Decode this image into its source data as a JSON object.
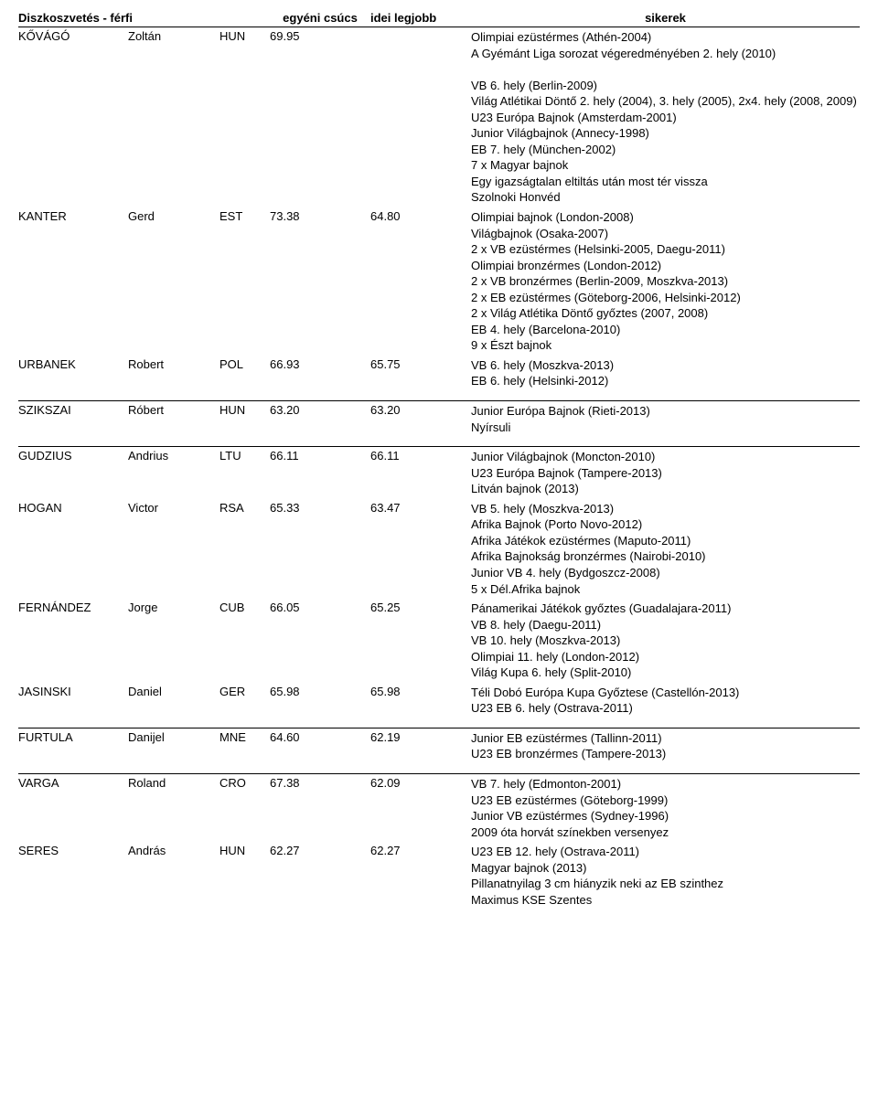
{
  "header": {
    "event": "Diszkoszvetés - férfi",
    "pb": "egyéni csúcs",
    "sb": "idei legjobb",
    "ach": "sikerek"
  },
  "athletes": [
    {
      "surname": "KŐVÁGÓ",
      "first": "Zoltán",
      "nat": "HUN",
      "pb": "69.95",
      "sb": "",
      "ach": [
        "Olimpiai ezüstérmes (Athén-2004)",
        "A Gyémánt Liga sorozat végeredményében 2. hely (2010)",
        "",
        "VB 6. hely (Berlin-2009)",
        "Világ Atlétikai Döntő 2. hely (2004), 3. hely (2005), 2x4. hely (2008, 2009)",
        "U23 Európa Bajnok (Amsterdam-2001)",
        "Junior Világbajnok (Annecy-1998)",
        "EB 7. hely (München-2002)",
        "7 x Magyar bajnok",
        "Egy igazságtalan eltiltás után most tér vissza",
        "Szolnoki Honvéd"
      ],
      "noTopBorder": true
    },
    {
      "surname": "KANTER",
      "first": "Gerd",
      "nat": "EST",
      "pb": "73.38",
      "sb": "64.80",
      "ach": [
        "Olimpiai bajnok (London-2008)",
        "Világbajnok (Osaka-2007)",
        "2 x VB ezüstérmes (Helsinki-2005, Daegu-2011)",
        "Olimpiai bronzérmes (London-2012)",
        "2 x VB bronzérmes (Berlin-2009, Moszkva-2013)",
        "2 x EB ezüstérmes (Göteborg-2006, Helsinki-2012)",
        "2 x Világ Atlétika Döntő győztes (2007, 2008)",
        "EB 4. hely (Barcelona-2010)",
        "9 x Észt bajnok"
      ],
      "noTopBorder": true
    },
    {
      "surname": "URBANEK",
      "first": "Robert",
      "nat": "POL",
      "pb": "66.93",
      "sb": "65.75",
      "ach": [
        "VB 6. hely (Moszkva-2013)",
        "EB 6. hely (Helsinki-2012)"
      ],
      "noTopBorder": true
    },
    {
      "surname": "SZIKSZAI",
      "first": "Róbert",
      "nat": "HUN",
      "pb": "63.20",
      "sb": "63.20",
      "ach": [
        "Junior Európa Bajnok (Rieti-2013)",
        "Nyírsuli"
      ]
    },
    {
      "surname": "GUDZIUS",
      "first": "Andrius",
      "nat": "LTU",
      "pb": "66.11",
      "sb": "66.11",
      "ach": [
        "Junior Világbajnok (Moncton-2010)",
        "U23 Európa Bajnok (Tampere-2013)",
        "Litván bajnok (2013)"
      ]
    },
    {
      "surname": "HOGAN",
      "first": "Victor",
      "nat": "RSA",
      "pb": "65.33",
      "sb": "63.47",
      "ach": [
        "VB 5. hely (Moszkva-2013)",
        "Afrika Bajnok (Porto Novo-2012)",
        "Afrika Játékok ezüstérmes (Maputo-2011)",
        "Afrika Bajnokság bronzérmes (Nairobi-2010)",
        "Junior VB 4. hely (Bydgoszcz-2008)",
        "5 x Dél.Afrika bajnok"
      ],
      "noTopBorder": true
    },
    {
      "surname": "FERNÁNDEZ",
      "first": "Jorge",
      "nat": "CUB",
      "pb": "66.05",
      "sb": "65.25",
      "ach": [
        "Pánamerikai Játékok győztes (Guadalajara-2011)",
        "VB 8. hely (Daegu-2011)",
        "VB 10. hely (Moszkva-2013)",
        "Olimpiai 11. hely (London-2012)",
        "Világ Kupa 6. hely (Split-2010)"
      ],
      "noTopBorder": true
    },
    {
      "surname": "JASINSKI",
      "first": "Daniel",
      "nat": "GER",
      "pb": "65.98",
      "sb": "65.98",
      "ach": [
        "Téli Dobó Európa Kupa Győztese (Castellón-2013)",
        "U23 EB 6. hely (Ostrava-2011)"
      ],
      "noTopBorder": true
    },
    {
      "surname": "FURTULA",
      "first": "Danijel",
      "nat": "MNE",
      "pb": "64.60",
      "sb": "62.19",
      "ach": [
        "Junior EB ezüstérmes (Tallinn-2011)",
        "U23 EB bronzérmes (Tampere-2013)"
      ]
    },
    {
      "surname": "VARGA",
      "first": "Roland",
      "nat": "CRO",
      "pb": "67.38",
      "sb": "62.09",
      "ach": [
        "VB 7. hely (Edmonton-2001)",
        "U23 EB ezüstérmes (Göteborg-1999)",
        "Junior VB ezüstérmes (Sydney-1996)",
        "2009 óta horvát színekben versenyez"
      ]
    },
    {
      "surname": "SERES",
      "first": "András",
      "nat": "HUN",
      "pb": "62.27",
      "sb": "62.27",
      "ach": [
        "U23 EB 12. hely (Ostrava-2011)",
        "Magyar bajnok (2013)",
        "Pillanatnyilag 3 cm hiányzik neki az EB szinthez",
        "Maximus KSE Szentes"
      ],
      "noTopBorder": true
    }
  ]
}
